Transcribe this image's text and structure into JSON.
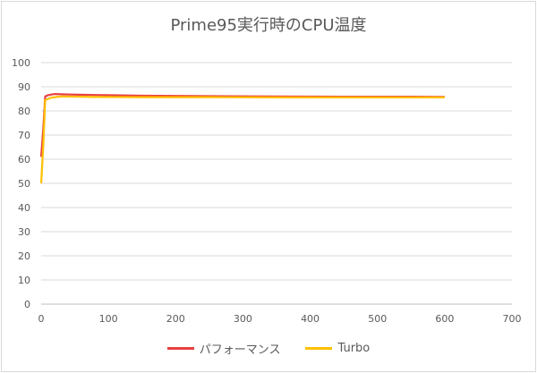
{
  "chart_data": {
    "type": "line",
    "title": "Prime95実行時のCPU温度",
    "xlabel": "",
    "ylabel": "",
    "xlim": [
      0,
      700
    ],
    "ylim": [
      0,
      100
    ],
    "xticks": [
      0,
      100,
      200,
      300,
      400,
      500,
      600,
      700
    ],
    "yticks": [
      0,
      10,
      20,
      30,
      40,
      50,
      60,
      70,
      80,
      90,
      100
    ],
    "grid": "horizontal",
    "legend_position": "bottom",
    "series": [
      {
        "name": "パフォーマンス",
        "color": "#e84040",
        "points": [
          [
            0,
            61
          ],
          [
            3,
            72
          ],
          [
            6,
            86
          ],
          [
            10,
            86.5
          ],
          [
            20,
            87
          ],
          [
            40,
            86.8
          ],
          [
            80,
            86.6
          ],
          [
            150,
            86.3
          ],
          [
            250,
            86.1
          ],
          [
            350,
            86
          ],
          [
            450,
            85.9
          ],
          [
            550,
            85.9
          ],
          [
            600,
            85.8
          ]
        ]
      },
      {
        "name": "Turbo",
        "color": "#ffc000",
        "points": [
          [
            0,
            50
          ],
          [
            3,
            65
          ],
          [
            6,
            84.5
          ],
          [
            15,
            85.5
          ],
          [
            30,
            86
          ],
          [
            80,
            85.8
          ],
          [
            150,
            85.7
          ],
          [
            250,
            85.7
          ],
          [
            350,
            85.6
          ],
          [
            450,
            85.6
          ],
          [
            550,
            85.6
          ],
          [
            600,
            85.6
          ]
        ]
      }
    ]
  }
}
